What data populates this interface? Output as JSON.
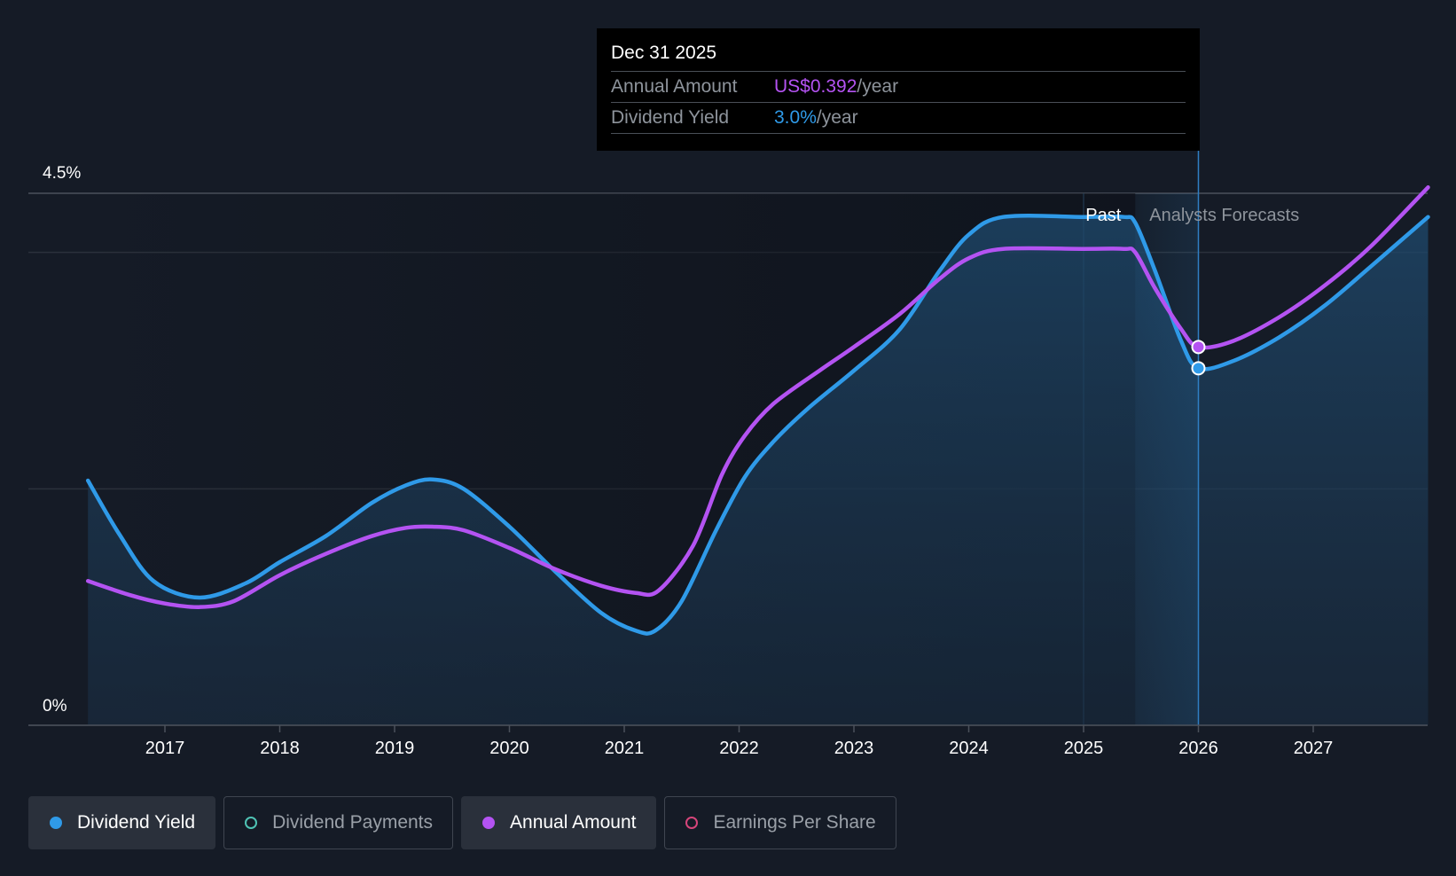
{
  "chart_data": {
    "type": "line",
    "title": "",
    "xlabel": "",
    "ylabel": "",
    "ylim": [
      0,
      4.5
    ],
    "y_ticks": [
      {
        "value": 4.5,
        "label": "4.5%"
      },
      {
        "value": 0,
        "label": "0%"
      }
    ],
    "x_ticks": [
      "2017",
      "2018",
      "2019",
      "2020",
      "2021",
      "2022",
      "2023",
      "2024",
      "2025",
      "2026",
      "2027"
    ],
    "x_range": [
      2016.33,
      2028.0
    ],
    "gridlines": [
      0,
      2.0,
      4.0,
      4.5
    ],
    "past_label": "Past",
    "forecast_label": "Analysts Forecasts",
    "forecast_start": 2025.45,
    "highlight_x": 2026.0,
    "series": [
      {
        "name": "Dividend Yield",
        "color": "#2f9ae8",
        "unit": "%",
        "x": [
          2016.33,
          2016.6,
          2016.9,
          2017.3,
          2017.7,
          2018.0,
          2018.4,
          2018.8,
          2019.1,
          2019.33,
          2019.6,
          2020.0,
          2020.4,
          2020.8,
          2021.1,
          2021.27,
          2021.5,
          2021.8,
          2022.05,
          2022.3,
          2022.6,
          2023.0,
          2023.4,
          2023.75,
          2024.0,
          2024.3,
          2025.0,
          2025.35,
          2025.45,
          2025.62,
          2025.85,
          2026.0,
          2026.3,
          2026.7,
          2027.1,
          2027.5,
          2028.0
        ],
        "y": [
          2.07,
          1.62,
          1.22,
          1.08,
          1.2,
          1.38,
          1.6,
          1.88,
          2.03,
          2.08,
          2.0,
          1.68,
          1.3,
          0.95,
          0.8,
          0.8,
          1.05,
          1.65,
          2.1,
          2.4,
          2.68,
          3.0,
          3.35,
          3.85,
          4.15,
          4.3,
          4.3,
          4.3,
          4.25,
          3.85,
          3.25,
          3.02,
          3.08,
          3.28,
          3.55,
          3.88,
          4.3
        ]
      },
      {
        "name": "Annual Amount",
        "color": "#b453f2",
        "unit": "US$",
        "x": [
          2016.33,
          2016.7,
          2017.0,
          2017.3,
          2017.6,
          2018.0,
          2018.4,
          2018.8,
          2019.1,
          2019.33,
          2019.6,
          2020.0,
          2020.4,
          2020.8,
          2021.1,
          2021.3,
          2021.6,
          2021.85,
          2022.05,
          2022.3,
          2022.7,
          2023.0,
          2023.4,
          2023.75,
          2024.0,
          2024.3,
          2025.0,
          2025.35,
          2025.45,
          2025.62,
          2025.85,
          2026.0,
          2026.3,
          2026.7,
          2027.1,
          2027.5,
          2028.0
        ],
        "y": [
          1.22,
          1.1,
          1.03,
          1.0,
          1.05,
          1.27,
          1.45,
          1.6,
          1.67,
          1.68,
          1.65,
          1.5,
          1.32,
          1.18,
          1.12,
          1.14,
          1.52,
          2.12,
          2.45,
          2.72,
          3.0,
          3.2,
          3.48,
          3.78,
          3.95,
          4.03,
          4.03,
          4.03,
          4.0,
          3.7,
          3.35,
          3.2,
          3.25,
          3.45,
          3.72,
          4.05,
          4.55
        ]
      }
    ],
    "markers": [
      {
        "series": "Annual Amount",
        "x": 2026.0,
        "y": 3.2
      },
      {
        "series": "Dividend Yield",
        "x": 2026.0,
        "y": 3.02
      }
    ]
  },
  "tooltip": {
    "date": "Dec 31 2025",
    "rows": [
      {
        "label": "Annual Amount",
        "value": "US$0.392",
        "unit": "/year"
      },
      {
        "label": "Dividend Yield",
        "value": "3.0%",
        "unit": "/year"
      }
    ]
  },
  "legend": [
    {
      "label": "Dividend Yield",
      "color": "#2f9ae8",
      "active": true
    },
    {
      "label": "Dividend Payments",
      "color": "#4fc3b4",
      "active": false
    },
    {
      "label": "Annual Amount",
      "color": "#b453f2",
      "active": true
    },
    {
      "label": "Earnings Per Share",
      "color": "#d6457a",
      "active": false
    }
  ]
}
